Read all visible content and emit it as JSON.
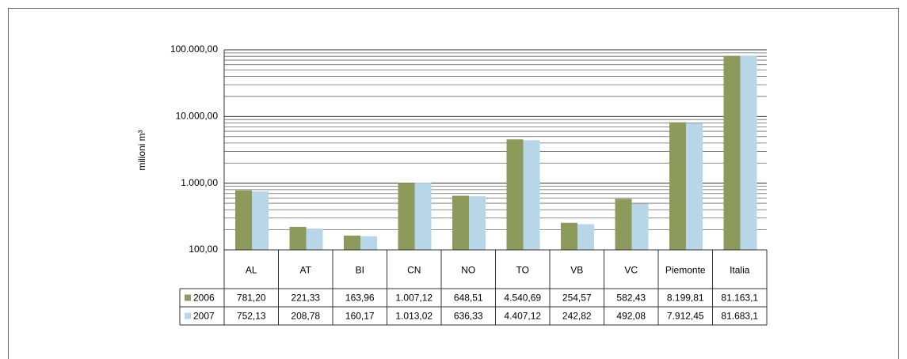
{
  "chart_data": {
    "type": "bar",
    "y_label": "milioni m³",
    "categories": [
      "AL",
      "AT",
      "BI",
      "CN",
      "NO",
      "TO",
      "VB",
      "VC",
      "Piemonte",
      "Italia"
    ],
    "series": [
      {
        "name": "2006",
        "color": "#8c9a5b",
        "values": [
          781.2,
          221.33,
          163.96,
          1007.12,
          648.51,
          4540.69,
          254.57,
          582.43,
          8199.81,
          81163.1
        ],
        "value_labels": [
          "781,20",
          "221,33",
          "163,96",
          "1.007,12",
          "648,51",
          "4.540,69",
          "254,57",
          "582,43",
          "8.199,81",
          "81.163,1"
        ]
      },
      {
        "name": "2007",
        "color": "#b7d7e8",
        "values": [
          752.13,
          208.78,
          160.17,
          1013.02,
          636.33,
          4407.12,
          242.82,
          492.08,
          7912.45,
          81683.1
        ],
        "value_labels": [
          "752,13",
          "208,78",
          "160,17",
          "1.013,02",
          "636,33",
          "4.407,12",
          "242,82",
          "492,08",
          "7.912,45",
          "81.683,1"
        ]
      }
    ],
    "ylim": [
      100,
      100000
    ],
    "yticks": [
      {
        "value": 100,
        "label": "100,00"
      },
      {
        "value": 1000,
        "label": "1.000,00"
      },
      {
        "value": 10000,
        "label": "10.000,00"
      },
      {
        "value": 100000,
        "label": "100.000,00"
      }
    ],
    "log_scale": true,
    "grid": true,
    "minor_grid": true
  }
}
